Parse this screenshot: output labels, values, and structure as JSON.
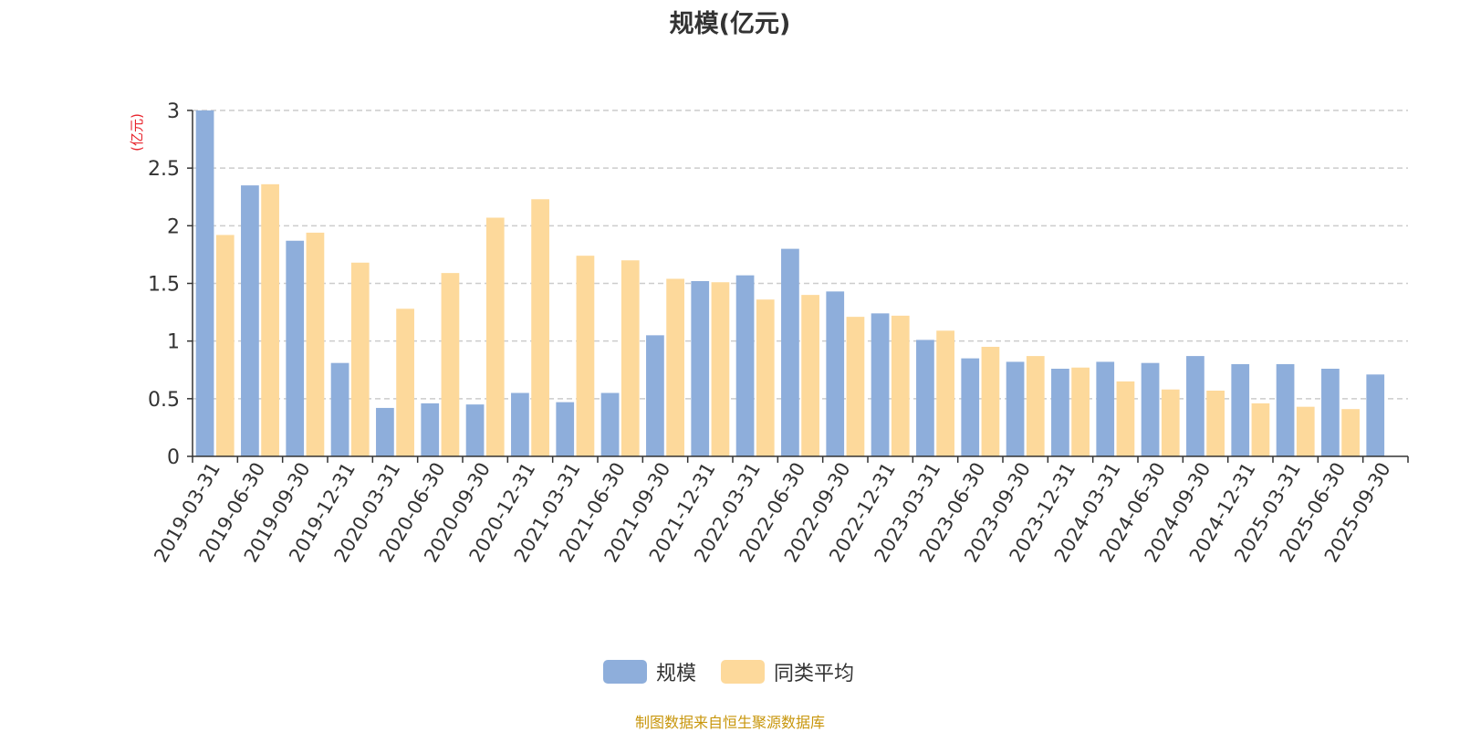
{
  "chart_data": {
    "type": "bar",
    "title": "规模(亿元)",
    "ylabel": "(亿元)",
    "xlabel": "",
    "ylim": [
      0,
      3
    ],
    "yticks": [
      0,
      0.5,
      1,
      1.5,
      2,
      2.5,
      3
    ],
    "ytick_labels": [
      "0",
      "0.5",
      "1",
      "1.5",
      "2",
      "2.5",
      "3"
    ],
    "grid": "horizontal dashed",
    "legend_position": "bottom-center",
    "categories": [
      "2019-03-31",
      "2019-06-30",
      "2019-09-30",
      "2019-12-31",
      "2020-03-31",
      "2020-06-30",
      "2020-09-30",
      "2020-12-31",
      "2021-03-31",
      "2021-06-30",
      "2021-09-30",
      "2021-12-31",
      "2022-03-31",
      "2022-06-30",
      "2022-09-30",
      "2022-12-31",
      "2023-03-31",
      "2023-06-30",
      "2023-09-30",
      "2023-12-31",
      "2024-03-31",
      "2024-06-30",
      "2024-09-30",
      "2024-12-31",
      "2025-03-31",
      "2025-06-30",
      "2025-09-30"
    ],
    "series": [
      {
        "name": "规模",
        "color": "#8eaedb",
        "values": [
          3.0,
          2.35,
          1.87,
          0.81,
          0.42,
          0.46,
          0.45,
          0.55,
          0.47,
          0.55,
          1.05,
          1.52,
          1.57,
          1.8,
          1.43,
          1.24,
          1.01,
          0.85,
          0.82,
          0.76,
          0.82,
          0.81,
          0.87,
          0.8,
          0.8,
          0.76,
          0.71
        ]
      },
      {
        "name": "同类平均",
        "color": "#fdd99b",
        "values": [
          1.92,
          2.36,
          1.94,
          1.68,
          1.28,
          1.59,
          2.07,
          2.23,
          1.74,
          1.7,
          1.54,
          1.51,
          1.36,
          1.4,
          1.21,
          1.22,
          1.09,
          0.95,
          0.87,
          0.77,
          0.65,
          0.58,
          0.57,
          0.46,
          0.43,
          0.41,
          null
        ]
      }
    ],
    "source_note": "制图数据来自恒生聚源数据库"
  }
}
